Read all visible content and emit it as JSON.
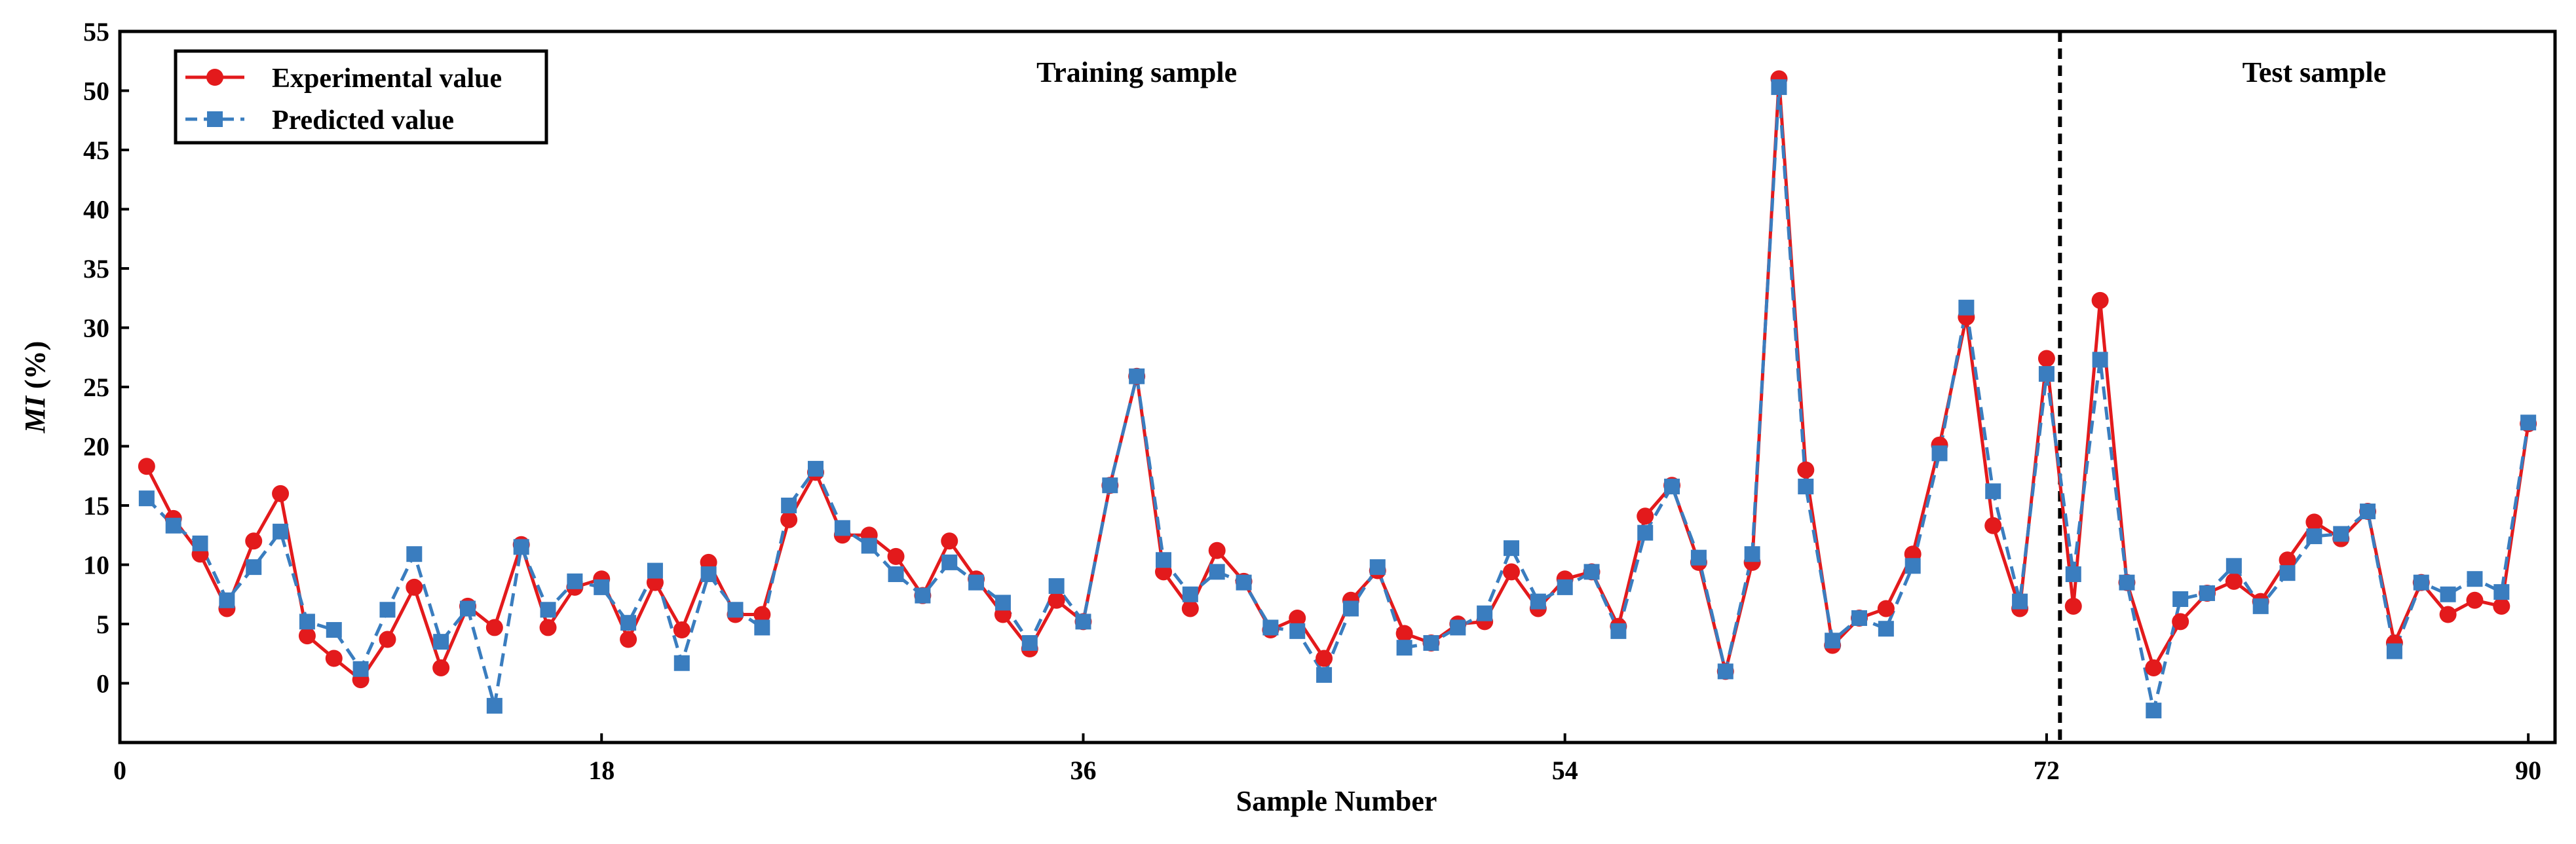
{
  "chart_data": {
    "type": "line",
    "xlabel": "Sample Number",
    "ylabel_italic": "MI",
    "ylabel_rest": " (%)",
    "xlim": [
      0,
      91
    ],
    "ylim": [
      -5,
      55
    ],
    "xticks": [
      0,
      18,
      36,
      54,
      72,
      90
    ],
    "yticks": [
      0,
      5,
      10,
      15,
      20,
      25,
      30,
      35,
      40,
      45,
      50,
      55
    ],
    "divider_x": 72.5,
    "region_labels": [
      {
        "text": "Training sample",
        "x": 38
      },
      {
        "text": "Test sample",
        "x": 82
      }
    ],
    "legend_position": "top-left",
    "x": [
      1,
      2,
      3,
      4,
      5,
      6,
      7,
      8,
      9,
      10,
      11,
      12,
      13,
      14,
      15,
      16,
      17,
      18,
      19,
      20,
      21,
      22,
      23,
      24,
      25,
      26,
      27,
      28,
      29,
      30,
      31,
      32,
      33,
      34,
      35,
      36,
      37,
      38,
      39,
      40,
      41,
      42,
      43,
      44,
      45,
      46,
      47,
      48,
      49,
      50,
      51,
      52,
      53,
      54,
      55,
      56,
      57,
      58,
      59,
      60,
      61,
      62,
      63,
      64,
      65,
      66,
      67,
      68,
      69,
      70,
      71,
      72,
      73,
      74,
      75,
      76,
      77,
      78,
      79,
      80,
      81,
      82,
      83,
      84,
      85,
      86,
      87,
      88,
      89,
      90
    ],
    "series": [
      {
        "name": "Experimental value",
        "color": "#e31a1c",
        "marker": "circle",
        "line": "solid",
        "values": [
          18.3,
          13.9,
          10.9,
          6.3,
          12.0,
          16.0,
          4.0,
          2.1,
          0.3,
          3.7,
          8.1,
          1.3,
          6.5,
          4.7,
          11.7,
          4.7,
          8.1,
          8.8,
          3.7,
          8.5,
          4.5,
          10.2,
          5.8,
          5.8,
          13.8,
          17.8,
          12.5,
          12.5,
          10.7,
          7.4,
          12.0,
          8.8,
          5.8,
          2.9,
          7.0,
          5.2,
          16.7,
          25.9,
          9.4,
          6.3,
          11.2,
          8.6,
          4.5,
          5.5,
          2.1,
          7.0,
          9.5,
          4.2,
          3.4,
          5.0,
          5.2,
          9.4,
          6.3,
          8.8,
          9.4,
          4.8,
          14.1,
          16.7,
          10.2,
          1.0,
          10.2,
          51.0,
          18.0,
          3.2,
          5.5,
          6.3,
          10.9,
          20.1,
          30.9,
          13.3,
          6.3,
          27.4,
          6.5,
          32.3,
          8.5,
          1.3,
          5.2,
          7.6,
          8.6,
          6.9,
          10.4,
          13.6,
          12.2,
          14.5,
          3.4,
          8.5,
          5.8,
          7.0,
          6.5,
          21.9
        ]
      },
      {
        "name": "Predicted value",
        "color": "#3a7dbf",
        "marker": "square",
        "line": "dashed",
        "values": [
          15.6,
          13.3,
          11.8,
          7.0,
          9.8,
          12.8,
          5.2,
          4.5,
          1.2,
          6.2,
          10.9,
          3.5,
          6.3,
          -1.9,
          11.5,
          6.2,
          8.6,
          8.1,
          5.1,
          9.5,
          1.7,
          9.2,
          6.2,
          4.7,
          15.0,
          18.1,
          13.1,
          11.6,
          9.2,
          7.4,
          10.2,
          8.5,
          6.8,
          3.4,
          8.2,
          5.2,
          16.7,
          25.9,
          10.4,
          7.5,
          9.4,
          8.5,
          4.7,
          4.4,
          0.7,
          6.3,
          9.8,
          3.0,
          3.4,
          4.7,
          5.9,
          11.4,
          6.9,
          8.1,
          9.4,
          4.4,
          12.7,
          16.6,
          10.6,
          1.0,
          10.9,
          50.3,
          16.6,
          3.6,
          5.5,
          4.6,
          9.9,
          19.4,
          31.7,
          16.2,
          6.9,
          26.1,
          9.2,
          27.3,
          8.5,
          -2.3,
          7.1,
          7.6,
          9.9,
          6.5,
          9.3,
          12.4,
          12.6,
          14.5,
          2.7,
          8.5,
          7.5,
          8.8,
          7.7,
          22.0
        ]
      }
    ]
  }
}
